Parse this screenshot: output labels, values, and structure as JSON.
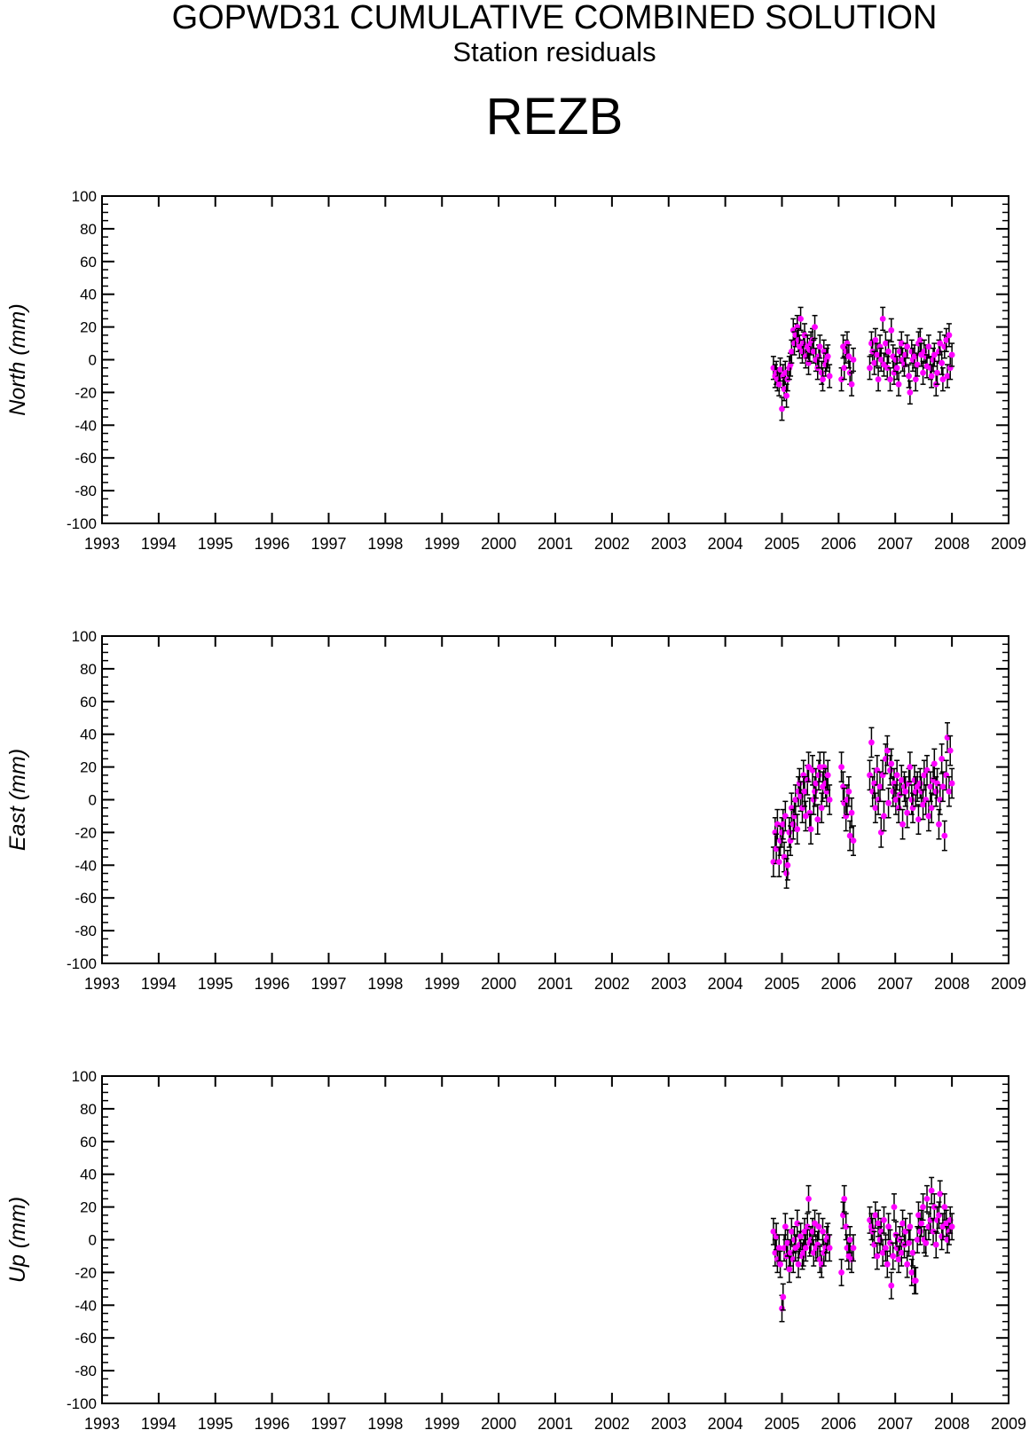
{
  "header": {
    "title": "GOPWD31 CUMULATIVE COMBINED SOLUTION",
    "subtitle": "Station residuals",
    "station": "REZB"
  },
  "colors": {
    "point": "#ff00ff",
    "errorbar": "#000000",
    "axis": "#000000"
  },
  "chart_data": [
    {
      "type": "scatter",
      "ylabel": "North (mm)",
      "xlim": [
        1993,
        2009
      ],
      "ylim": [
        -100,
        100
      ],
      "x_ticks": [
        "1993",
        "1994",
        "1995",
        "1996",
        "1997",
        "1998",
        "1999",
        "2000",
        "2001",
        "2002",
        "2003",
        "2004",
        "2005",
        "2006",
        "2007",
        "2008",
        "2009"
      ],
      "y_ticks": [
        "100",
        "80",
        "60",
        "40",
        "20",
        "0",
        "-20",
        "-40",
        "-60",
        "-80",
        "-100"
      ],
      "grid": false,
      "error_bar_mm": 7,
      "series": [
        {
          "x": [
            2004.85,
            2004.88,
            2004.9,
            2004.92,
            2004.95,
            2004.97,
            2005.0,
            2005.02,
            2005.04,
            2005.06,
            2005.08,
            2005.1,
            2005.13,
            2005.15,
            2005.17,
            2005.2,
            2005.22,
            2005.24,
            2005.27,
            2005.29,
            2005.31,
            2005.33,
            2005.36,
            2005.38,
            2005.4,
            2005.42,
            2005.45,
            2005.47,
            2005.49,
            2005.51,
            2005.54,
            2005.56,
            2005.58,
            2005.6,
            2005.63,
            2005.65,
            2005.67,
            2005.7,
            2005.72,
            2005.74,
            2005.77,
            2005.79,
            2005.81,
            2005.84,
            2006.05,
            2006.08,
            2006.1,
            2006.13,
            2006.15,
            2006.18,
            2006.2,
            2006.23,
            2006.26,
            2006.55,
            2006.58,
            2006.6,
            2006.63,
            2006.65,
            2006.68,
            2006.7,
            2006.73,
            2006.75,
            2006.78,
            2006.8,
            2006.83,
            2006.86,
            2006.88,
            2006.91,
            2006.93,
            2006.96,
            2006.98,
            2007.01,
            2007.03,
            2007.06,
            2007.08,
            2007.11,
            2007.13,
            2007.16,
            2007.18,
            2007.21,
            2007.24,
            2007.26,
            2007.29,
            2007.31,
            2007.34,
            2007.36,
            2007.39,
            2007.41,
            2007.44,
            2007.46,
            2007.49,
            2007.51,
            2007.54,
            2007.56,
            2007.59,
            2007.62,
            2007.64,
            2007.67,
            2007.69,
            2007.72,
            2007.74,
            2007.77,
            2007.79,
            2007.82,
            2007.84,
            2007.87,
            2007.9,
            2007.92,
            2007.95,
            2007.97,
            2008.0
          ],
          "y": [
            -5,
            -10,
            -8,
            -12,
            -15,
            -6,
            -30,
            -10,
            -18,
            -8,
            -22,
            -12,
            -5,
            -3,
            5,
            18,
            10,
            15,
            20,
            12,
            8,
            25,
            5,
            10,
            15,
            2,
            8,
            -2,
            6,
            10,
            12,
            5,
            20,
            0,
            -5,
            2,
            8,
            -8,
            -12,
            5,
            -3,
            0,
            2,
            -10,
            -12,
            8,
            -5,
            5,
            10,
            2,
            -8,
            -15,
            0,
            -5,
            10,
            5,
            -2,
            12,
            3,
            -12,
            8,
            0,
            25,
            -3,
            10,
            -5,
            5,
            -12,
            18,
            2,
            -8,
            0,
            -5,
            -15,
            5,
            10,
            0,
            -3,
            3,
            8,
            -10,
            -20,
            5,
            0,
            2,
            -12,
            -3,
            10,
            12,
            3,
            -8,
            5,
            2,
            -4,
            8,
            -5,
            -10,
            0,
            3,
            -15,
            -8,
            5,
            10,
            -2,
            -12,
            8,
            12,
            -10,
            15,
            -5,
            3
          ]
        }
      ]
    },
    {
      "type": "scatter",
      "ylabel": "East (mm)",
      "xlim": [
        1993,
        2009
      ],
      "ylim": [
        -100,
        100
      ],
      "x_ticks": [
        "1993",
        "1994",
        "1995",
        "1996",
        "1997",
        "1998",
        "1999",
        "2000",
        "2001",
        "2002",
        "2003",
        "2004",
        "2005",
        "2006",
        "2007",
        "2008",
        "2009"
      ],
      "y_ticks": [
        "100",
        "80",
        "60",
        "40",
        "20",
        "0",
        "-20",
        "-40",
        "-60",
        "-80",
        "-100"
      ],
      "grid": false,
      "error_bar_mm": 9,
      "series": [
        {
          "x": [
            2004.85,
            2004.88,
            2004.9,
            2004.92,
            2004.95,
            2004.97,
            2005.0,
            2005.02,
            2005.04,
            2005.06,
            2005.08,
            2005.1,
            2005.13,
            2005.15,
            2005.17,
            2005.2,
            2005.22,
            2005.24,
            2005.27,
            2005.29,
            2005.31,
            2005.33,
            2005.36,
            2005.38,
            2005.4,
            2005.42,
            2005.45,
            2005.47,
            2005.49,
            2005.51,
            2005.54,
            2005.56,
            2005.58,
            2005.6,
            2005.63,
            2005.65,
            2005.67,
            2005.7,
            2005.72,
            2005.74,
            2005.77,
            2005.79,
            2005.81,
            2005.84,
            2006.05,
            2006.08,
            2006.1,
            2006.13,
            2006.15,
            2006.18,
            2006.2,
            2006.23,
            2006.26,
            2006.55,
            2006.58,
            2006.6,
            2006.63,
            2006.65,
            2006.68,
            2006.7,
            2006.73,
            2006.75,
            2006.78,
            2006.8,
            2006.83,
            2006.86,
            2006.88,
            2006.91,
            2006.93,
            2006.96,
            2006.98,
            2007.01,
            2007.03,
            2007.06,
            2007.08,
            2007.11,
            2007.13,
            2007.16,
            2007.18,
            2007.21,
            2007.24,
            2007.26,
            2007.29,
            2007.31,
            2007.34,
            2007.36,
            2007.39,
            2007.41,
            2007.44,
            2007.46,
            2007.49,
            2007.51,
            2007.54,
            2007.56,
            2007.59,
            2007.62,
            2007.64,
            2007.67,
            2007.69,
            2007.72,
            2007.74,
            2007.77,
            2007.79,
            2007.82,
            2007.84,
            2007.87,
            2007.9,
            2007.92,
            2007.95,
            2007.97,
            2008.0
          ],
          "y": [
            -38,
            -20,
            -30,
            -15,
            -38,
            -25,
            -20,
            -15,
            -35,
            -10,
            -45,
            -40,
            -20,
            -25,
            -5,
            -15,
            -10,
            0,
            -18,
            5,
            10,
            2,
            -5,
            15,
            5,
            -10,
            12,
            20,
            -8,
            -18,
            18,
            0,
            5,
            10,
            -12,
            15,
            20,
            -5,
            8,
            20,
            10,
            5,
            15,
            0,
            20,
            8,
            -2,
            -10,
            0,
            5,
            -22,
            -8,
            -25,
            15,
            35,
            5,
            10,
            -5,
            18,
            0,
            8,
            -20,
            15,
            -10,
            25,
            30,
            -2,
            18,
            22,
            5,
            10,
            0,
            15,
            -5,
            3,
            12,
            -15,
            8,
            5,
            -8,
            10,
            20,
            0,
            -5,
            12,
            5,
            8,
            -12,
            10,
            5,
            -3,
            15,
            0,
            18,
            -10,
            8,
            -5,
            12,
            22,
            5,
            10,
            -15,
            0,
            25,
            8,
            -22,
            15,
            38,
            5,
            30,
            10
          ]
        }
      ]
    },
    {
      "type": "scatter",
      "ylabel": "Up (mm)",
      "xlim": [
        1993,
        2009
      ],
      "ylim": [
        -100,
        100
      ],
      "x_ticks": [
        "1993",
        "1994",
        "1995",
        "1996",
        "1997",
        "1998",
        "1999",
        "2000",
        "2001",
        "2002",
        "2003",
        "2004",
        "2005",
        "2006",
        "2007",
        "2008",
        "2009"
      ],
      "y_ticks": [
        "100",
        "80",
        "60",
        "40",
        "20",
        "0",
        "-20",
        "-40",
        "-60",
        "-80",
        "-100"
      ],
      "grid": false,
      "error_bar_mm": 8,
      "series": [
        {
          "x": [
            2004.85,
            2004.88,
            2004.9,
            2004.92,
            2004.95,
            2004.97,
            2005.0,
            2005.02,
            2005.04,
            2005.06,
            2005.08,
            2005.1,
            2005.13,
            2005.15,
            2005.17,
            2005.2,
            2005.22,
            2005.24,
            2005.27,
            2005.29,
            2005.31,
            2005.33,
            2005.36,
            2005.38,
            2005.4,
            2005.42,
            2005.45,
            2005.47,
            2005.49,
            2005.51,
            2005.54,
            2005.56,
            2005.58,
            2005.6,
            2005.63,
            2005.65,
            2005.67,
            2005.7,
            2005.72,
            2005.74,
            2005.77,
            2005.79,
            2005.81,
            2005.84,
            2006.05,
            2006.08,
            2006.1,
            2006.13,
            2006.15,
            2006.18,
            2006.2,
            2006.23,
            2006.26,
            2006.55,
            2006.58,
            2006.6,
            2006.63,
            2006.65,
            2006.68,
            2006.7,
            2006.73,
            2006.75,
            2006.78,
            2006.8,
            2006.83,
            2006.86,
            2006.88,
            2006.91,
            2006.93,
            2006.96,
            2006.98,
            2007.01,
            2007.03,
            2007.06,
            2007.08,
            2007.11,
            2007.13,
            2007.16,
            2007.18,
            2007.21,
            2007.24,
            2007.26,
            2007.29,
            2007.31,
            2007.34,
            2007.36,
            2007.39,
            2007.41,
            2007.44,
            2007.46,
            2007.49,
            2007.51,
            2007.54,
            2007.56,
            2007.59,
            2007.62,
            2007.64,
            2007.67,
            2007.69,
            2007.72,
            2007.74,
            2007.77,
            2007.79,
            2007.82,
            2007.84,
            2007.87,
            2007.9,
            2007.92,
            2007.95,
            2007.97,
            2008.0
          ],
          "y": [
            5,
            -8,
            2,
            -12,
            -5,
            -15,
            -42,
            -35,
            -5,
            8,
            -10,
            -2,
            -18,
            -8,
            5,
            -12,
            0,
            -5,
            10,
            -15,
            -3,
            2,
            -10,
            -8,
            5,
            -5,
            8,
            25,
            -2,
            0,
            5,
            -8,
            10,
            -5,
            -3,
            8,
            -12,
            -15,
            5,
            -8,
            -5,
            0,
            2,
            -5,
            -20,
            15,
            25,
            8,
            -5,
            -10,
            0,
            -12,
            -5,
            12,
            8,
            5,
            -3,
            15,
            -10,
            10,
            0,
            5,
            -8,
            12,
            -5,
            -15,
            8,
            -2,
            -28,
            -10,
            20,
            3,
            -5,
            -12,
            0,
            -8,
            10,
            -3,
            5,
            -15,
            -2,
            8,
            -20,
            -8,
            -25,
            -25,
            0,
            15,
            5,
            10,
            20,
            0,
            -2,
            25,
            8,
            12,
            30,
            5,
            20,
            -3,
            12,
            15,
            28,
            2,
            8,
            20,
            10,
            0,
            5,
            12,
            8
          ]
        }
      ]
    }
  ]
}
